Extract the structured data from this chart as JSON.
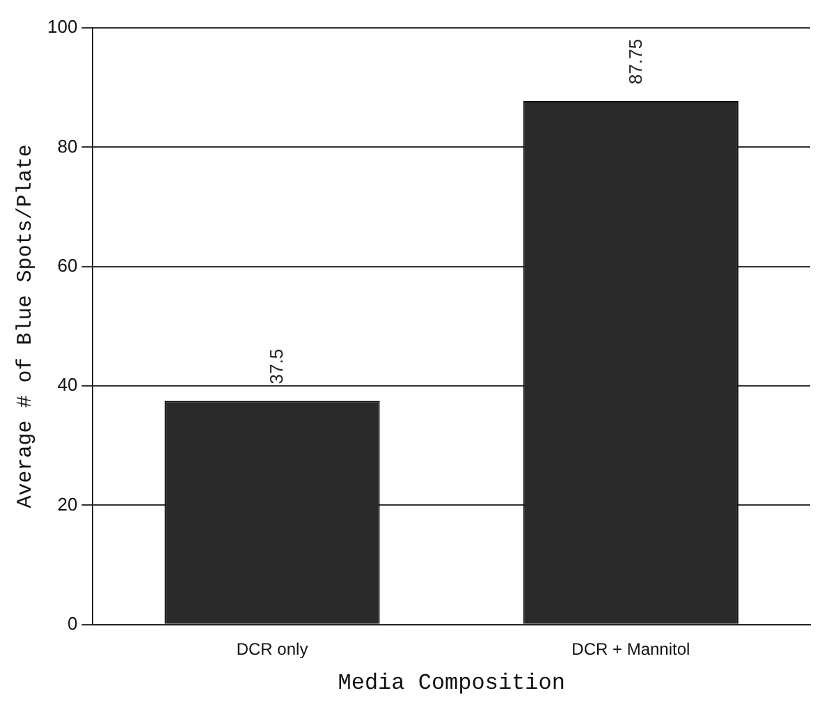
{
  "chart_data": {
    "type": "bar",
    "xlabel": "Media Composition",
    "ylabel": "Average # of Blue Spots/Plate",
    "categories": [
      "DCR only",
      "DCR + Mannitol"
    ],
    "values": [
      37.5,
      87.75
    ],
    "color": "#2a2a2a",
    "ylim": [
      0,
      100
    ],
    "yticks": [
      0,
      20,
      40,
      60,
      80,
      100
    ],
    "grid": "y",
    "data_labels": true
  }
}
